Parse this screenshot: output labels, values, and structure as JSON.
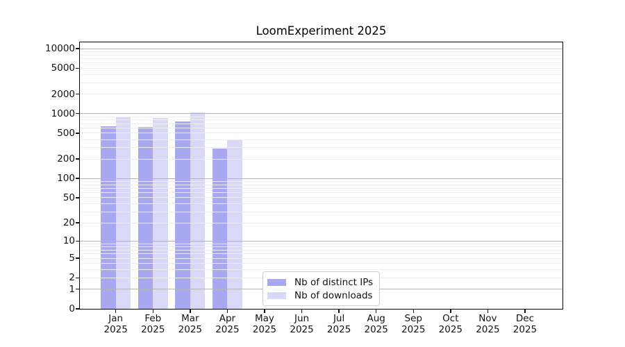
{
  "chart_data": {
    "type": "bar",
    "title": "LoomExperiment 2025",
    "categories": [
      "Jan 2025",
      "Feb 2025",
      "Mar 2025",
      "Apr 2025",
      "May 2025",
      "Jun 2025",
      "Jul 2025",
      "Aug 2025",
      "Sep 2025",
      "Oct 2025",
      "Nov 2025",
      "Dec 2025"
    ],
    "series": [
      {
        "name": "Nb of distinct IPs",
        "color": "#a8a8f0",
        "values": [
          640,
          620,
          760,
          290,
          0,
          0,
          0,
          0,
          0,
          0,
          0,
          0
        ]
      },
      {
        "name": "Nb of downloads",
        "color": "#d9d9f7",
        "values": [
          900,
          860,
          1050,
          390,
          0,
          0,
          0,
          0,
          0,
          0,
          0,
          0
        ]
      }
    ],
    "xlabel": "",
    "ylabel": "",
    "yscale": "log1p",
    "yticks": [
      0,
      1,
      2,
      5,
      10,
      20,
      50,
      100,
      200,
      500,
      1000,
      2000,
      5000,
      10000
    ],
    "ylim": [
      0,
      12500
    ],
    "grid": true,
    "grid_major_color": "#b4b4b4",
    "grid_minor_color": "#ededed",
    "legend_position": "lower center"
  },
  "legend": {
    "items": [
      {
        "label": "Nb of distinct IPs",
        "color": "#a8a8f0"
      },
      {
        "label": "Nb of downloads",
        "color": "#d9d9f7"
      }
    ]
  }
}
